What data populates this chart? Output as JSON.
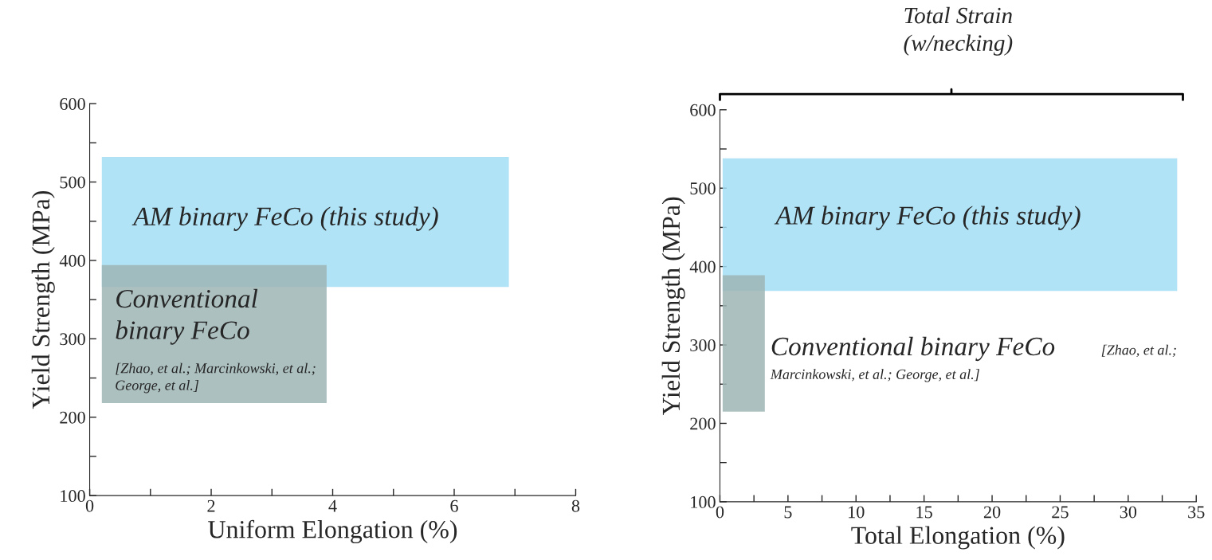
{
  "chart_data": [
    {
      "type": "area",
      "xlabel": "Uniform Elongation (%)",
      "ylabel": "Yield Strength (MPa)",
      "xlim": [
        0,
        8
      ],
      "ylim": [
        100,
        600
      ],
      "xticks": [
        0,
        {
          "value": 1,
          "label": null
        },
        2,
        {
          "value": 3,
          "label": null
        },
        4,
        {
          "value": 5,
          "label": null
        },
        6,
        {
          "value": 7,
          "label": null
        },
        8
      ],
      "yticks": [
        100,
        {
          "value": 150,
          "label": null
        },
        200,
        {
          "value": 250,
          "label": null
        },
        300,
        {
          "value": 350,
          "label": null
        },
        400,
        {
          "value": 450,
          "label": null
        },
        500,
        {
          "value": 550,
          "label": null
        },
        600
      ],
      "series": [
        {
          "color": "#a2def5",
          "x": [
            0.2,
            6.9
          ],
          "lower": [
            366,
            366
          ],
          "upper": [
            532,
            532
          ],
          "values": [
            null,
            null
          ]
        },
        {
          "color": "#9fb5b5",
          "x": [
            0.2,
            3.9
          ],
          "lower": [
            218,
            218
          ],
          "upper": [
            394,
            394
          ],
          "values": [
            null,
            null
          ]
        }
      ],
      "annotations": [
        "AM binary FeCo (this study)",
        "Conventional\nbinary FeCo",
        "[Zhao, et al.; Marcinkowski, et al.;\nGeorge, et al.]"
      ]
    },
    {
      "type": "area",
      "xlabel": "Total Elongation (%)",
      "ylabel": "Yield Strength (MPa)",
      "xlim": [
        0,
        35
      ],
      "ylim": [
        100,
        600
      ],
      "xticks": [
        0,
        {
          "value": 2.5,
          "label": null
        },
        5,
        {
          "value": 7.5,
          "label": null
        },
        10,
        {
          "value": 12.5,
          "label": null
        },
        15,
        {
          "value": 17.5,
          "label": null
        },
        20,
        {
          "value": 22.5,
          "label": null
        },
        25,
        {
          "value": 27.5,
          "label": null
        },
        30,
        {
          "value": 32.5,
          "label": null
        },
        35
      ],
      "yticks": [
        100,
        {
          "value": 150,
          "label": null
        },
        200,
        {
          "value": 250,
          "label": null
        },
        300,
        {
          "value": 350,
          "label": null
        },
        400,
        {
          "value": 450,
          "label": null
        },
        500,
        {
          "value": 550,
          "label": null
        },
        600
      ],
      "series": [
        {
          "color": "#a2def5",
          "x": [
            0.2,
            33.6
          ],
          "lower": [
            369,
            369
          ],
          "upper": [
            538,
            538
          ],
          "values": [
            null,
            null
          ]
        },
        {
          "color": "#9fb5b5",
          "x": [
            0.2,
            3.3
          ],
          "lower": [
            215,
            215
          ],
          "upper": [
            389,
            389
          ],
          "values": [
            null,
            null
          ]
        }
      ],
      "annotations": [
        "Total Strain\n(w/necking)",
        "AM binary FeCo (this study)",
        "Conventional binary FeCo",
        "[Zhao, et al.;",
        "Marcinkowski, et al.; George, et al.]"
      ]
    }
  ]
}
